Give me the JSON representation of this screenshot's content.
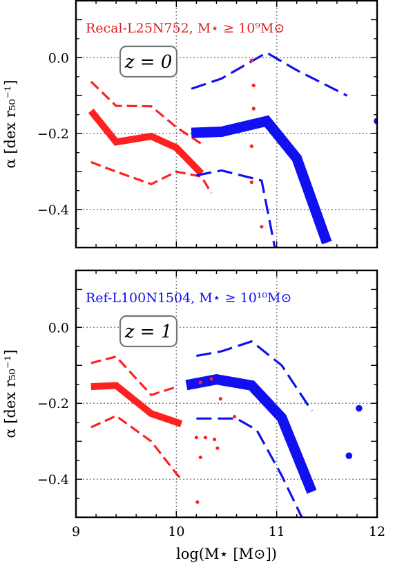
{
  "chart_data": [
    {
      "type": "line",
      "panel": "top",
      "xlim": [
        9,
        12
      ],
      "ylim": [
        -0.5,
        0.15
      ],
      "yticks": [
        0.0,
        -0.2,
        -0.4
      ],
      "ytick_labels": [
        "0.0",
        "−0.2",
        "−0.4"
      ],
      "ylabel": "α [dex r₅₀⁻¹]",
      "annotation": "Recal-L25N752, M⋆ ≥ 10⁹M⊙",
      "annotation_color": "#e02020",
      "redshift_label": "z = 0",
      "series": [
        {
          "color": "#ff2020",
          "style": "median",
          "x": [
            9.15,
            9.4,
            9.75,
            10.0,
            10.25
          ],
          "y": [
            -0.14,
            -0.222,
            -0.207,
            -0.237,
            -0.305
          ]
        },
        {
          "color": "#ff2020",
          "style": "percentile",
          "x": [
            9.15,
            9.4,
            9.75,
            10.0,
            10.25
          ],
          "y": [
            -0.063,
            -0.127,
            -0.128,
            -0.183,
            -0.227
          ]
        },
        {
          "color": "#ff2020",
          "style": "percentile",
          "x": [
            9.15,
            9.4,
            9.75,
            10.0,
            10.25,
            10.35
          ],
          "y": [
            -0.275,
            -0.3,
            -0.333,
            -0.3,
            -0.313,
            -0.357
          ]
        },
        {
          "color": "#1010f0",
          "style": "median",
          "x": [
            10.15,
            10.45,
            10.9,
            11.2,
            11.5
          ],
          "y": [
            -0.198,
            -0.195,
            -0.167,
            -0.265,
            -0.487
          ]
        },
        {
          "color": "#1010f0",
          "style": "percentile",
          "x": [
            10.15,
            10.45,
            10.9,
            11.2,
            11.5,
            11.7
          ],
          "y": [
            -0.082,
            -0.055,
            0.013,
            -0.033,
            -0.073,
            -0.1
          ]
        },
        {
          "color": "#1010f0",
          "style": "percentile",
          "x": [
            10.2,
            10.45,
            10.8,
            10.85,
            10.98,
            11.0
          ],
          "y": [
            -0.31,
            -0.297,
            -0.32,
            -0.324,
            -0.499,
            -0.5
          ]
        }
      ],
      "points": [
        {
          "color": "#ff2020",
          "size": "small",
          "x": [
            10.75,
            10.77,
            10.77,
            10.75,
            10.75,
            10.85
          ],
          "y": [
            -0.007,
            -0.073,
            -0.134,
            -0.233,
            -0.328,
            -0.445
          ]
        },
        {
          "color": "#1010f0",
          "size": "large",
          "x": [
            12.0
          ],
          "y": [
            -0.167
          ]
        }
      ]
    },
    {
      "type": "line",
      "panel": "bottom",
      "xlim": [
        9,
        12
      ],
      "ylim": [
        -0.5,
        0.15
      ],
      "xticks": [
        9,
        10,
        11,
        12
      ],
      "xtick_labels": [
        "9",
        "10",
        "11",
        "12"
      ],
      "yticks": [
        0.0,
        -0.2,
        -0.4
      ],
      "ytick_labels": [
        "0.0",
        "−0.2",
        "−0.4"
      ],
      "xlabel": "log(M⋆ [M⊙])",
      "ylabel": "α [dex r₅₀⁻¹]",
      "annotation": "Ref-L100N1504, M⋆ ≥ 10¹⁰M⊙",
      "annotation_color": "#1010f0",
      "redshift_label": "z = 1",
      "series": [
        {
          "color": "#ff2020",
          "style": "median",
          "x": [
            9.15,
            9.4,
            9.75,
            10.05
          ],
          "y": [
            -0.156,
            -0.153,
            -0.227,
            -0.254
          ]
        },
        {
          "color": "#ff2020",
          "style": "percentile",
          "x": [
            9.15,
            9.4,
            9.75,
            10.0
          ],
          "y": [
            -0.094,
            -0.077,
            -0.178,
            -0.157
          ]
        },
        {
          "color": "#ff2020",
          "style": "percentile",
          "x": [
            9.15,
            9.4,
            9.75,
            10.0,
            10.05
          ],
          "y": [
            -0.263,
            -0.233,
            -0.3,
            -0.385,
            -0.4
          ]
        },
        {
          "color": "#1010f0",
          "style": "median",
          "x": [
            10.1,
            10.4,
            10.75,
            11.05,
            11.35
          ],
          "y": [
            -0.152,
            -0.137,
            -0.153,
            -0.238,
            -0.433
          ]
        },
        {
          "color": "#1010f0",
          "style": "percentile",
          "x": [
            10.2,
            10.45,
            10.75,
            11.05,
            11.35
          ],
          "y": [
            -0.075,
            -0.063,
            -0.037,
            -0.1,
            -0.22
          ]
        },
        {
          "color": "#1010f0",
          "style": "percentile",
          "x": [
            10.2,
            10.6,
            10.8,
            11.05,
            11.25
          ],
          "y": [
            -0.24,
            -0.24,
            -0.27,
            -0.39,
            -0.5
          ]
        }
      ],
      "points": [
        {
          "color": "#ff2020",
          "size": "small",
          "x": [
            10.24,
            10.35,
            10.44,
            10.2,
            10.29,
            10.24,
            10.38,
            10.41,
            10.58,
            10.21
          ],
          "y": [
            -0.145,
            -0.136,
            -0.188,
            -0.29,
            -0.29,
            -0.342,
            -0.295,
            -0.318,
            -0.235,
            -0.46
          ]
        },
        {
          "color": "#1010f0",
          "size": "large",
          "x": [
            11.82,
            11.72
          ],
          "y": [
            -0.213,
            -0.338
          ]
        }
      ]
    }
  ]
}
